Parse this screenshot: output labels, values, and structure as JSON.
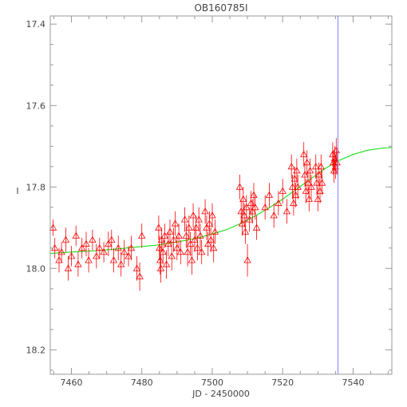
{
  "chart_data": {
    "type": "scatter",
    "title": "OB160785I",
    "xlabel": "JD - 2450000",
    "ylabel": "I",
    "xlim": [
      7454,
      7551
    ],
    "ylim": [
      18.26,
      17.38
    ],
    "y_inverted": true,
    "xticks": [
      7460,
      7480,
      7500,
      7520,
      7540
    ],
    "yticks": [
      17.4,
      17.6,
      17.8,
      18.0,
      18.2
    ],
    "xtick_labels": [
      "7460",
      "7480",
      "7500",
      "7520",
      "7540"
    ],
    "ytick_labels": [
      "17.4",
      "17.6",
      "17.8",
      "18.0",
      "18.2"
    ],
    "grid": false,
    "vertical_line": {
      "x": 7535.7,
      "color": "#8080ff"
    },
    "model_curve": {
      "color": "#00dd00",
      "points": [
        [
          7454,
          17.963
        ],
        [
          7460,
          17.96
        ],
        [
          7466,
          17.957
        ],
        [
          7472,
          17.953
        ],
        [
          7478,
          17.948
        ],
        [
          7484,
          17.943
        ],
        [
          7490,
          17.935
        ],
        [
          7496,
          17.925
        ],
        [
          7500,
          17.915
        ],
        [
          7504,
          17.905
        ],
        [
          7508,
          17.89
        ],
        [
          7512,
          17.872
        ],
        [
          7516,
          17.852
        ],
        [
          7520,
          17.83
        ],
        [
          7524,
          17.805
        ],
        [
          7528,
          17.78
        ],
        [
          7532,
          17.755
        ],
        [
          7536,
          17.735
        ],
        [
          7540,
          17.72
        ],
        [
          7544,
          17.71
        ],
        [
          7548,
          17.705
        ],
        [
          7551,
          17.703
        ]
      ]
    },
    "series": [
      {
        "color": "#ff0000",
        "marker": "triangle",
        "points": [
          [
            7454.8,
            17.9,
            0.02
          ],
          [
            7455.3,
            17.95,
            0.025
          ],
          [
            7456.5,
            17.98,
            0.03
          ],
          [
            7457.2,
            17.96,
            0.025
          ],
          [
            7458.4,
            17.93,
            0.03
          ],
          [
            7459.1,
            18.0,
            0.03
          ],
          [
            7460.0,
            17.97,
            0.025
          ],
          [
            7461.3,
            17.92,
            0.025
          ],
          [
            7461.9,
            17.99,
            0.03
          ],
          [
            7463.0,
            17.95,
            0.025
          ],
          [
            7464.2,
            17.94,
            0.03
          ],
          [
            7464.9,
            17.98,
            0.03
          ],
          [
            7466.0,
            17.93,
            0.025
          ],
          [
            7467.1,
            17.97,
            0.03
          ],
          [
            7468.0,
            17.95,
            0.025
          ],
          [
            7469.2,
            17.96,
            0.025
          ],
          [
            7470.5,
            17.94,
            0.03
          ],
          [
            7471.4,
            17.93,
            0.025
          ],
          [
            7472.0,
            17.98,
            0.03
          ],
          [
            7473.3,
            17.95,
            0.03
          ],
          [
            7474.1,
            17.99,
            0.03
          ],
          [
            7475.0,
            17.96,
            0.03
          ],
          [
            7476.2,
            17.97,
            0.025
          ],
          [
            7477.0,
            17.95,
            0.03
          ],
          [
            7478.6,
            18.0,
            0.03
          ],
          [
            7479.4,
            18.02,
            0.035
          ],
          [
            7480.0,
            17.92,
            0.03
          ],
          [
            7484.8,
            17.9,
            0.03
          ],
          [
            7485.0,
            17.95,
            0.03
          ],
          [
            7485.2,
            17.98,
            0.035
          ],
          [
            7485.4,
            18.0,
            0.035
          ],
          [
            7485.6,
            17.93,
            0.03
          ],
          [
            7486.0,
            17.96,
            0.03
          ],
          [
            7486.5,
            17.92,
            0.03
          ],
          [
            7487.0,
            17.99,
            0.035
          ],
          [
            7487.5,
            17.94,
            0.03
          ],
          [
            7488.0,
            17.91,
            0.03
          ],
          [
            7488.5,
            17.97,
            0.035
          ],
          [
            7489.0,
            17.93,
            0.03
          ],
          [
            7489.5,
            17.89,
            0.03
          ],
          [
            7490.0,
            17.95,
            0.03
          ],
          [
            7490.5,
            17.92,
            0.03
          ],
          [
            7491.0,
            17.96,
            0.03
          ],
          [
            7492.2,
            17.88,
            0.03
          ],
          [
            7492.6,
            17.92,
            0.03
          ],
          [
            7493.0,
            17.96,
            0.035
          ],
          [
            7493.4,
            17.9,
            0.03
          ],
          [
            7493.8,
            17.94,
            0.03
          ],
          [
            7494.2,
            17.98,
            0.035
          ],
          [
            7494.6,
            17.87,
            0.03
          ],
          [
            7495.0,
            17.93,
            0.03
          ],
          [
            7495.4,
            17.9,
            0.03
          ],
          [
            7495.8,
            17.95,
            0.03
          ],
          [
            7496.2,
            17.88,
            0.03
          ],
          [
            7496.6,
            17.92,
            0.03
          ],
          [
            7497.0,
            17.96,
            0.03
          ],
          [
            7498.0,
            17.86,
            0.03
          ],
          [
            7498.4,
            17.9,
            0.03
          ],
          [
            7498.8,
            17.94,
            0.03
          ],
          [
            7499.2,
            17.89,
            0.03
          ],
          [
            7499.6,
            17.93,
            0.03
          ],
          [
            7500.0,
            17.87,
            0.03
          ],
          [
            7500.4,
            17.95,
            0.035
          ],
          [
            7500.8,
            17.91,
            0.03
          ],
          [
            7507.8,
            17.8,
            0.03
          ],
          [
            7508.2,
            17.86,
            0.03
          ],
          [
            7508.5,
            17.89,
            0.03
          ],
          [
            7508.8,
            17.83,
            0.03
          ],
          [
            7509.1,
            17.87,
            0.03
          ],
          [
            7509.4,
            17.91,
            0.03
          ],
          [
            7509.7,
            17.85,
            0.03
          ],
          [
            7510.0,
            17.98,
            0.04
          ],
          [
            7510.6,
            17.88,
            0.03
          ],
          [
            7511.0,
            17.84,
            0.03
          ],
          [
            7511.4,
            17.86,
            0.03
          ],
          [
            7511.8,
            17.82,
            0.03
          ],
          [
            7512.2,
            17.85,
            0.03
          ],
          [
            7512.6,
            17.9,
            0.03
          ],
          [
            7515.0,
            17.85,
            0.03
          ],
          [
            7516.2,
            17.82,
            0.03
          ],
          [
            7517.5,
            17.87,
            0.03
          ],
          [
            7518.8,
            17.84,
            0.03
          ],
          [
            7520.0,
            17.81,
            0.03
          ],
          [
            7521.2,
            17.86,
            0.03
          ],
          [
            7522.5,
            17.75,
            0.03
          ],
          [
            7522.8,
            17.8,
            0.03
          ],
          [
            7523.1,
            17.84,
            0.03
          ],
          [
            7523.4,
            17.78,
            0.03
          ],
          [
            7523.7,
            17.82,
            0.03
          ],
          [
            7524.0,
            17.76,
            0.03
          ],
          [
            7524.3,
            17.8,
            0.03
          ],
          [
            7526.0,
            17.72,
            0.03
          ],
          [
            7526.3,
            17.77,
            0.03
          ],
          [
            7526.6,
            17.81,
            0.03
          ],
          [
            7526.9,
            17.74,
            0.03
          ],
          [
            7527.2,
            17.79,
            0.03
          ],
          [
            7527.5,
            17.83,
            0.03
          ],
          [
            7527.8,
            17.76,
            0.03
          ],
          [
            7528.1,
            17.8,
            0.03
          ],
          [
            7529.4,
            17.75,
            0.03
          ],
          [
            7529.7,
            17.79,
            0.03
          ],
          [
            7530.0,
            17.83,
            0.03
          ],
          [
            7530.3,
            17.77,
            0.03
          ],
          [
            7530.6,
            17.81,
            0.03
          ],
          [
            7530.9,
            17.75,
            0.03
          ],
          [
            7531.2,
            17.79,
            0.03
          ],
          [
            7534.2,
            17.72,
            0.03
          ],
          [
            7534.4,
            17.74,
            0.03
          ],
          [
            7534.6,
            17.76,
            0.03
          ],
          [
            7534.8,
            17.73,
            0.03
          ],
          [
            7535.0,
            17.75,
            0.03
          ],
          [
            7535.2,
            17.71,
            0.03
          ],
          [
            7535.4,
            17.74,
            0.03
          ]
        ]
      }
    ]
  }
}
